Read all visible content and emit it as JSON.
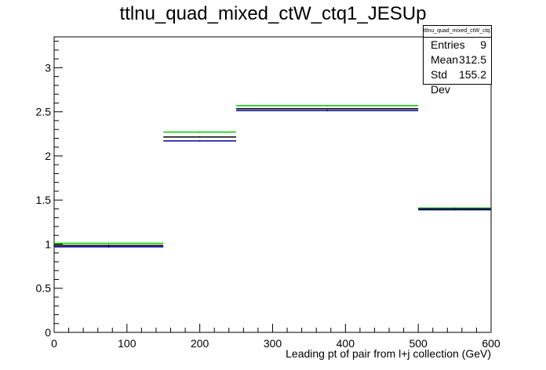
{
  "chart_data": {
    "type": "histogram",
    "title": "ttlnu_quad_mixed_ctW_ctq1_JESUp",
    "xlabel": "Leading pt of pair from l+j collection (GeV)",
    "ylabel": "",
    "xlim": [
      0,
      600
    ],
    "ylim": [
      0,
      3.35
    ],
    "xticks": [
      0,
      100,
      200,
      300,
      400,
      500,
      600
    ],
    "yticks": [
      0,
      0.5,
      1,
      1.5,
      2,
      2.5,
      3
    ],
    "bin_edges": [
      0,
      150,
      250,
      500,
      600
    ],
    "series": [
      {
        "color": "#00cc00",
        "values": [
          1.01,
          2.27,
          2.57,
          1.41
        ]
      },
      {
        "color": "#000000",
        "values": [
          0.985,
          2.215,
          2.535,
          1.4
        ]
      },
      {
        "color": "#000099",
        "values": [
          0.97,
          2.17,
          2.515,
          1.39
        ]
      }
    ],
    "grid": false,
    "legend": "none"
  },
  "stats_box": {
    "name": "ttlnu_quad_mixed_ctW_ctq1_JESUp",
    "rows": [
      {
        "label": "Entries",
        "value": "9"
      },
      {
        "label": "Mean",
        "value": "312.5"
      },
      {
        "label": "Std Dev",
        "value": "155.2"
      }
    ]
  }
}
